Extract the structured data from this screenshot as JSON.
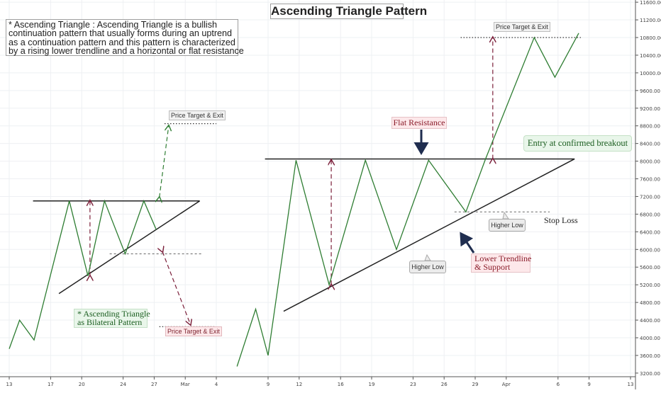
{
  "title": "Ascending Triangle Pattern",
  "description": [
    "* Ascending Triangle : Ascending Triangle is a bullish",
    " continuation pattern that usually forms during an uptrend",
    " as a continuation pattern and this pattern is characterized",
    "by a rising lower trendline and a horizontal or flat resistance"
  ],
  "annotations": {
    "flat_resistance": "Flat Resistance",
    "entry": "Entry at confirmed breakout",
    "lower_trendline": [
      "Lower Trendline",
      "& Support"
    ],
    "stop_loss": "Stop Loss",
    "higher_low_1": "Higher Low",
    "higher_low_2": "Higher Low",
    "target_right": "Price Target & Exit",
    "target_left_up": "Price Target & Exit",
    "target_left_down": "Price Target & Exit",
    "bilateral": [
      "* Ascending Triangle",
      "as Bilateral Pattern"
    ]
  },
  "chart_data": {
    "type": "line",
    "title": "Ascending Triangle Pattern",
    "x_ticks": [
      {
        "label": "13",
        "t": 0
      },
      {
        "label": "17",
        "t": 4
      },
      {
        "label": "20",
        "t": 7
      },
      {
        "label": "24",
        "t": 11
      },
      {
        "label": "27",
        "t": 14
      },
      {
        "label": "Mar",
        "t": 17
      },
      {
        "label": "4",
        "t": 20
      },
      {
        "label": "9",
        "t": 25
      },
      {
        "label": "12",
        "t": 28
      },
      {
        "label": "16",
        "t": 32
      },
      {
        "label": "19",
        "t": 35
      },
      {
        "label": "23",
        "t": 39
      },
      {
        "label": "26",
        "t": 42
      },
      {
        "label": "29",
        "t": 45
      },
      {
        "label": "Apr",
        "t": 48
      },
      {
        "label": "6",
        "t": 53
      },
      {
        "label": "9",
        "t": 56
      },
      {
        "label": "13",
        "t": 60
      }
    ],
    "y_ticks": [
      3200,
      3600,
      4000,
      4400,
      4800,
      5200,
      5600,
      6000,
      6400,
      6800,
      7200,
      7600,
      8000,
      8400,
      8800,
      9200,
      9600,
      10000,
      10400,
      10800,
      11200,
      11600
    ],
    "y_tick_labels": [
      "3200.00",
      "3600.00",
      "4000.00",
      "4400.00",
      "4800.00",
      "5200.00",
      "5600.00",
      "6000.00",
      "6400.00",
      "6800.00",
      "7200.00",
      "7600.00",
      "8000.00",
      "8400.00",
      "8800.00",
      "9200.00",
      "9600.00",
      "10000.00",
      "10400.00",
      "10800.00",
      "11200.00",
      "11600.00"
    ],
    "ylim": [
      3150,
      11650
    ],
    "xlim": [
      0,
      60.5
    ],
    "series": [
      {
        "color": "#2e7d32",
        "points": [
          [
            0,
            3750
          ],
          [
            1,
            4400
          ],
          [
            2.4,
            3950
          ],
          [
            5.8,
            7100
          ],
          [
            7.6,
            5400
          ],
          [
            9.2,
            7100
          ],
          [
            11.2,
            5900
          ],
          [
            13,
            7100
          ],
          [
            14.2,
            6450
          ]
        ]
      },
      {
        "color": "#2e7d32",
        "points": [
          [
            22,
            3350
          ],
          [
            23.8,
            4650
          ],
          [
            25,
            3600
          ],
          [
            27.7,
            8020
          ],
          [
            30.9,
            5200
          ],
          [
            34.4,
            8020
          ],
          [
            37.4,
            6000
          ],
          [
            40.5,
            8020
          ],
          [
            44.1,
            6850
          ],
          [
            46,
            8050
          ],
          [
            50.7,
            10800
          ],
          [
            52.7,
            9900
          ],
          [
            55,
            10900
          ]
        ]
      }
    ],
    "trendlines": [
      {
        "name": "resistance-left",
        "from": [
          2.3,
          7100
        ],
        "to": [
          18.4,
          7100
        ],
        "style": "solid"
      },
      {
        "name": "support-left",
        "from": [
          4.8,
          5000
        ],
        "to": [
          18.4,
          7100
        ],
        "style": "solid"
      },
      {
        "name": "resistance-right",
        "from": [
          24.7,
          8050
        ],
        "to": [
          54.6,
          8050
        ],
        "style": "solid"
      },
      {
        "name": "support-right",
        "from": [
          26.5,
          4600
        ],
        "to": [
          54.6,
          8050
        ],
        "style": "solid"
      },
      {
        "name": "target-right",
        "from": [
          43.6,
          10800
        ],
        "to": [
          55.2,
          10800
        ],
        "style": "dotted"
      },
      {
        "name": "stop-right",
        "from": [
          43,
          6850
        ],
        "to": [
          52.2,
          6850
        ],
        "style": "dashed"
      },
      {
        "name": "target-left-up",
        "from": [
          15,
          8850
        ],
        "to": [
          20,
          8850
        ],
        "style": "dotted"
      },
      {
        "name": "target-left-down",
        "from": [
          14.5,
          4250
        ],
        "to": [
          19.8,
          4250
        ],
        "style": "dotted"
      },
      {
        "name": "breakdown-left",
        "from": [
          9.7,
          5900
        ],
        "to": [
          18.6,
          5900
        ],
        "style": "dashed"
      }
    ],
    "measure_arrows": [
      {
        "from": [
          7.8,
          5400
        ],
        "to": [
          7.8,
          7100
        ],
        "color": "#7b1f3a"
      },
      {
        "from": [
          31.1,
          5200
        ],
        "to": [
          31.1,
          8020
        ],
        "color": "#7b1f3a"
      },
      {
        "from": [
          46.7,
          8050
        ],
        "to": [
          46.7,
          10800
        ],
        "color": "#7b1f3a"
      },
      {
        "from": [
          14.5,
          7180
        ],
        "to": [
          15.4,
          8800
        ],
        "color": "#2e7d32"
      },
      {
        "from": [
          14.8,
          5950
        ],
        "to": [
          17.5,
          4300
        ],
        "color": "#7b1f3a"
      }
    ],
    "grid": true
  }
}
